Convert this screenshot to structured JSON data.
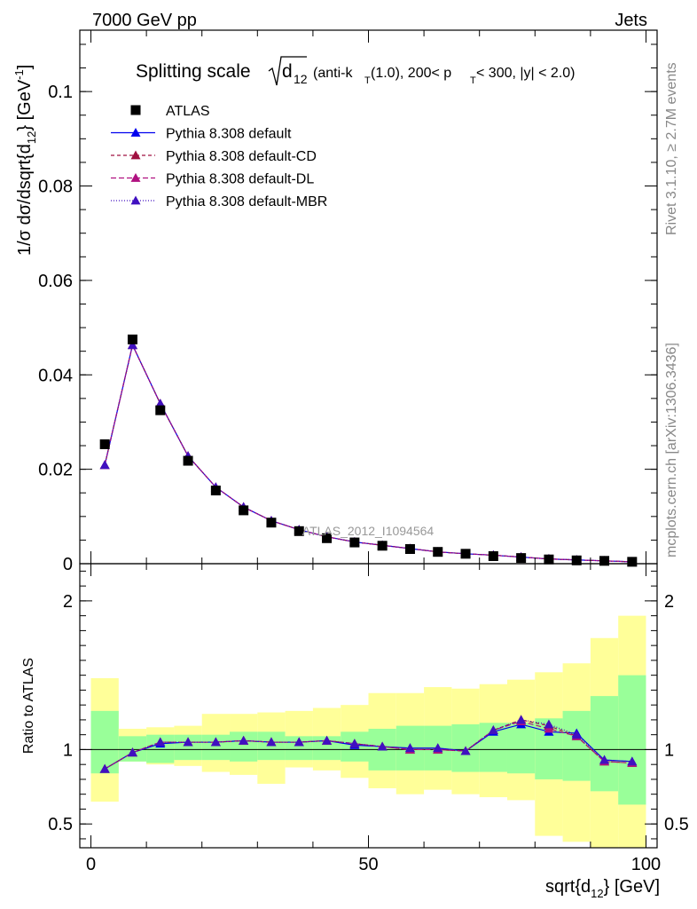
{
  "header": {
    "left": "7000 GeV pp",
    "right": "Jets"
  },
  "side_labels": {
    "rivet": "Rivet 3.1.10, ≥ 2.7M events",
    "mcplots": "mcplots.cern.ch [arXiv:1306.3436]"
  },
  "watermark": "ATLAS_2012_I1094564",
  "chart_data": [
    {
      "type": "line",
      "title_parts": {
        "prefix": "Splitting scale",
        "sqrt_arg": "d",
        "sqrt_sub": "12",
        "t1": " (anti-k",
        "t1_sub": "T",
        "t2": "(1.0), 200< p",
        "t2_sub": "T",
        "t3": " < 300, |y| < 2.0)"
      },
      "ylabel": "1/σ dσ/dsqrt{d_{12}} [GeV^{-1}]",
      "ylabel_parts": {
        "main": "1/σ dσ/dsqrt{d",
        "sub": "12",
        "mid": "} [GeV",
        "sup": "-1",
        "end": "]"
      },
      "xlim": [
        -2,
        102
      ],
      "ylim": [
        0,
        0.113
      ],
      "yticks": [
        "0",
        "0.02",
        "0.04",
        "0.06",
        "0.08",
        "0.1"
      ],
      "x": [
        2.5,
        7.5,
        12.5,
        17.5,
        22.5,
        27.5,
        32.5,
        37.5,
        42.5,
        47.5,
        52.5,
        57.5,
        62.5,
        67.5,
        72.5,
        77.5,
        82.5,
        87.5,
        92.5,
        97.5
      ],
      "data": {
        "name": "ATLAS",
        "values": [
          0.0253,
          0.0475,
          0.0325,
          0.0218,
          0.0155,
          0.0113,
          0.0087,
          0.0069,
          0.0054,
          0.0045,
          0.0038,
          0.0031,
          0.0025,
          0.0021,
          0.0016,
          0.0012,
          0.0009,
          0.0007,
          0.0006,
          0.0004
        ],
        "color": "#000000"
      },
      "series": [
        {
          "name": "Pythia 8.308 default",
          "color": "#0000ee",
          "dash": "",
          "values": [
            0.0209,
            0.0463,
            0.0339,
            0.0228,
            0.0162,
            0.012,
            0.0091,
            0.0072,
            0.0057,
            0.0046,
            0.0039,
            0.0032,
            0.0025,
            0.0021,
            0.0018,
            0.0014,
            0.001,
            0.0008,
            0.0006,
            0.0004
          ]
        },
        {
          "name": "Pythia 8.308 default-CD",
          "color": "#a01040",
          "dash": "4,3",
          "values": [
            0.0209,
            0.0463,
            0.0339,
            0.0228,
            0.0162,
            0.012,
            0.0091,
            0.0072,
            0.0057,
            0.0046,
            0.0039,
            0.0032,
            0.0025,
            0.0021,
            0.0018,
            0.0014,
            0.001,
            0.0008,
            0.0006,
            0.0004
          ]
        },
        {
          "name": "Pythia 8.308 default-DL",
          "color": "#b01080",
          "dash": "6,3",
          "values": [
            0.0209,
            0.0463,
            0.0339,
            0.0228,
            0.0162,
            0.012,
            0.0091,
            0.0072,
            0.0057,
            0.0046,
            0.0039,
            0.0032,
            0.0025,
            0.0021,
            0.0018,
            0.0014,
            0.001,
            0.0008,
            0.0006,
            0.0004
          ]
        },
        {
          "name": "Pythia 8.308 default-MBR",
          "color": "#4010c0",
          "dash": "1,2",
          "values": [
            0.0209,
            0.0463,
            0.0339,
            0.0228,
            0.0162,
            0.012,
            0.0091,
            0.0072,
            0.0057,
            0.0046,
            0.0039,
            0.0032,
            0.0025,
            0.0021,
            0.0018,
            0.0014,
            0.001,
            0.0008,
            0.0006,
            0.0004
          ]
        }
      ],
      "legend_position": "top-left"
    },
    {
      "type": "line",
      "ylabel": "Ratio to ATLAS",
      "xlabel": "sqrt{d_{12}} [GeV]",
      "xlabel_parts": {
        "main": "sqrt{d",
        "sub": "12",
        "end": "} [GeV]"
      },
      "xlim": [
        -2,
        102
      ],
      "ylim": [
        0.34,
        2.25
      ],
      "xticks": [
        "0",
        "50",
        "100"
      ],
      "yticks": [
        "0.5",
        "1",
        "2"
      ],
      "x": [
        2.5,
        7.5,
        12.5,
        17.5,
        22.5,
        27.5,
        32.5,
        37.5,
        42.5,
        47.5,
        52.5,
        57.5,
        62.5,
        67.5,
        72.5,
        77.5,
        82.5,
        87.5,
        92.5,
        97.5
      ],
      "band_inner": [
        [
          0.84,
          1.26
        ],
        [
          0.92,
          1.09
        ],
        [
          0.91,
          1.1
        ],
        [
          0.93,
          1.1
        ],
        [
          0.93,
          1.1
        ],
        [
          0.92,
          1.12
        ],
        [
          0.93,
          1.12
        ],
        [
          0.93,
          1.09
        ],
        [
          0.93,
          1.09
        ],
        [
          0.92,
          1.12
        ],
        [
          0.86,
          1.14
        ],
        [
          0.86,
          1.16
        ],
        [
          0.86,
          1.16
        ],
        [
          0.85,
          1.17
        ],
        [
          0.85,
          1.18
        ],
        [
          0.84,
          1.18
        ],
        [
          0.8,
          1.21
        ],
        [
          0.79,
          1.26
        ],
        [
          0.72,
          1.36
        ],
        [
          0.63,
          1.5
        ]
      ],
      "band_outer": [
        [
          0.65,
          1.48
        ],
        [
          0.92,
          1.14
        ],
        [
          0.9,
          1.15
        ],
        [
          0.89,
          1.16
        ],
        [
          0.85,
          1.24
        ],
        [
          0.83,
          1.24
        ],
        [
          0.77,
          1.25
        ],
        [
          0.88,
          1.26
        ],
        [
          0.86,
          1.28
        ],
        [
          0.81,
          1.3
        ],
        [
          0.74,
          1.38
        ],
        [
          0.7,
          1.38
        ],
        [
          0.73,
          1.42
        ],
        [
          0.7,
          1.41
        ],
        [
          0.68,
          1.44
        ],
        [
          0.66,
          1.47
        ],
        [
          0.42,
          1.52
        ],
        [
          0.38,
          1.58
        ],
        [
          0.34,
          1.75
        ],
        [
          0.34,
          1.9
        ]
      ],
      "series": [
        {
          "name": "Pythia 8.308 default",
          "color": "#0000ee",
          "dash": "",
          "values": [
            0.87,
            0.98,
            1.04,
            1.05,
            1.05,
            1.06,
            1.05,
            1.05,
            1.06,
            1.03,
            1.02,
            1.01,
            1.01,
            0.99,
            1.12,
            1.17,
            1.12,
            1.11,
            0.93,
            0.92
          ]
        },
        {
          "name": "Pythia 8.308 default-CD",
          "color": "#a01040",
          "dash": "4,3",
          "values": [
            0.87,
            0.98,
            1.05,
            1.05,
            1.05,
            1.06,
            1.05,
            1.05,
            1.06,
            1.04,
            1.02,
            1.0,
            1.0,
            0.99,
            1.13,
            1.2,
            1.16,
            1.09,
            0.92,
            0.91
          ]
        },
        {
          "name": "Pythia 8.308 default-DL",
          "color": "#b01080",
          "dash": "6,3",
          "values": [
            0.87,
            0.98,
            1.05,
            1.05,
            1.05,
            1.06,
            1.05,
            1.05,
            1.06,
            1.04,
            1.02,
            1.0,
            1.0,
            0.99,
            1.13,
            1.19,
            1.14,
            1.09,
            0.92,
            0.91
          ]
        },
        {
          "name": "Pythia 8.308 default-MBR",
          "color": "#4010c0",
          "dash": "1,2",
          "values": [
            0.87,
            0.98,
            1.05,
            1.05,
            1.05,
            1.06,
            1.05,
            1.05,
            1.06,
            1.04,
            1.02,
            1.01,
            1.01,
            0.99,
            1.13,
            1.2,
            1.17,
            1.1,
            0.93,
            0.92
          ]
        }
      ]
    }
  ],
  "colors": {
    "band_inner": "#99ff99",
    "band_outer": "#ffff99",
    "side_text": "#888888"
  }
}
